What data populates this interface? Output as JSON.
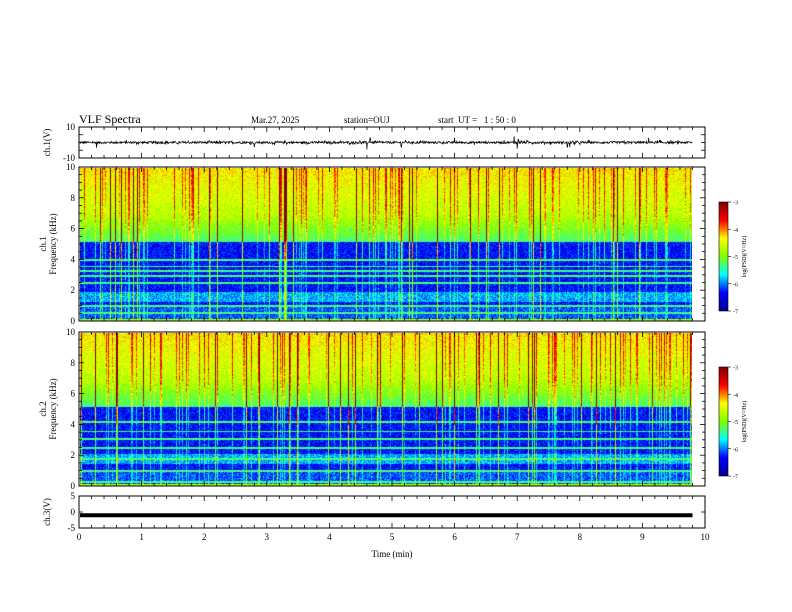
{
  "header": {
    "title": "VLF Spectra",
    "date": "Mar.27, 2025",
    "station": "station=OUJ",
    "start": "start  UT =   1 : 50 : 0"
  },
  "chart_data": [
    {
      "type": "line",
      "panel": "ch1-waveform",
      "ylabel": "ch.1(V)",
      "ylim": [
        -10,
        10
      ],
      "yticks": [
        "10",
        "-10"
      ],
      "baseline": 0,
      "noise_amplitude": 1,
      "spikes": [
        {
          "t": 0.28,
          "v": -3.5
        },
        {
          "t": 2.8,
          "v": -3
        },
        {
          "t": 4.6,
          "v": -4.5
        },
        {
          "t": 4.65,
          "v": 3
        },
        {
          "t": 5.15,
          "v": -3
        },
        {
          "t": 6.0,
          "v": 3
        },
        {
          "t": 6.95,
          "v": 4
        },
        {
          "t": 7.0,
          "v": -4
        },
        {
          "t": 7.02,
          "v": 2
        },
        {
          "t": 7.8,
          "v": -3
        },
        {
          "t": 7.84,
          "v": -3
        },
        {
          "t": 9.1,
          "v": 3
        }
      ]
    },
    {
      "type": "heatmap",
      "panel": "ch1-spectrogram",
      "ylabel_line1": "ch.1",
      "ylabel_line2": "Frequency  (kHz)",
      "ylim": [
        0,
        10
      ],
      "yticks": [
        "0",
        "2",
        "4",
        "6",
        "8",
        "10"
      ],
      "colorbar_range": [
        -7,
        -3
      ],
      "colorbar_ticks": [
        "-3",
        "-4",
        "-5",
        "-6",
        "-7"
      ],
      "colorbar_label": "log(PSD)(V²/Hz)",
      "quiet_band_khz": [
        1,
        5
      ],
      "hum_lines_khz": [
        0.55,
        1.0,
        2.5,
        3.0,
        3.3,
        3.6,
        4.0
      ]
    },
    {
      "type": "heatmap",
      "panel": "ch2-spectrogram",
      "ylabel_line1": "ch.2",
      "ylabel_line2": "Frequency  (kHz)",
      "ylim": [
        0,
        10
      ],
      "yticks": [
        "0",
        "2",
        "4",
        "6",
        "8",
        "10"
      ],
      "colorbar_range": [
        -7,
        -3
      ],
      "colorbar_ticks": [
        "-3",
        "-4",
        "-5",
        "-6",
        "-7"
      ],
      "colorbar_label": "log(PSD)(V²/Hz)",
      "quiet_band_khz": [
        1,
        5
      ],
      "hum_lines_khz": [
        0.3,
        1.0,
        1.8,
        2.5,
        3.1,
        3.6,
        4.2
      ]
    },
    {
      "type": "line",
      "panel": "ch3-waveform",
      "ylabel": "ch.3(V)",
      "ylim": [
        -5,
        5
      ],
      "yticks": [
        "5",
        "0",
        "-5"
      ],
      "value": -1.0,
      "xlabel": "Time  (min)",
      "xlim": [
        0,
        10
      ],
      "xticks": [
        "0",
        "1",
        "2",
        "3",
        "4",
        "5",
        "6",
        "7",
        "8",
        "9",
        "10"
      ],
      "data_end_min": 9.8
    }
  ],
  "colors": {
    "jet": [
      "#00008f",
      "#0000ff",
      "#00ffff",
      "#80ff00",
      "#ffff00",
      "#ff0000",
      "#800000"
    ]
  }
}
